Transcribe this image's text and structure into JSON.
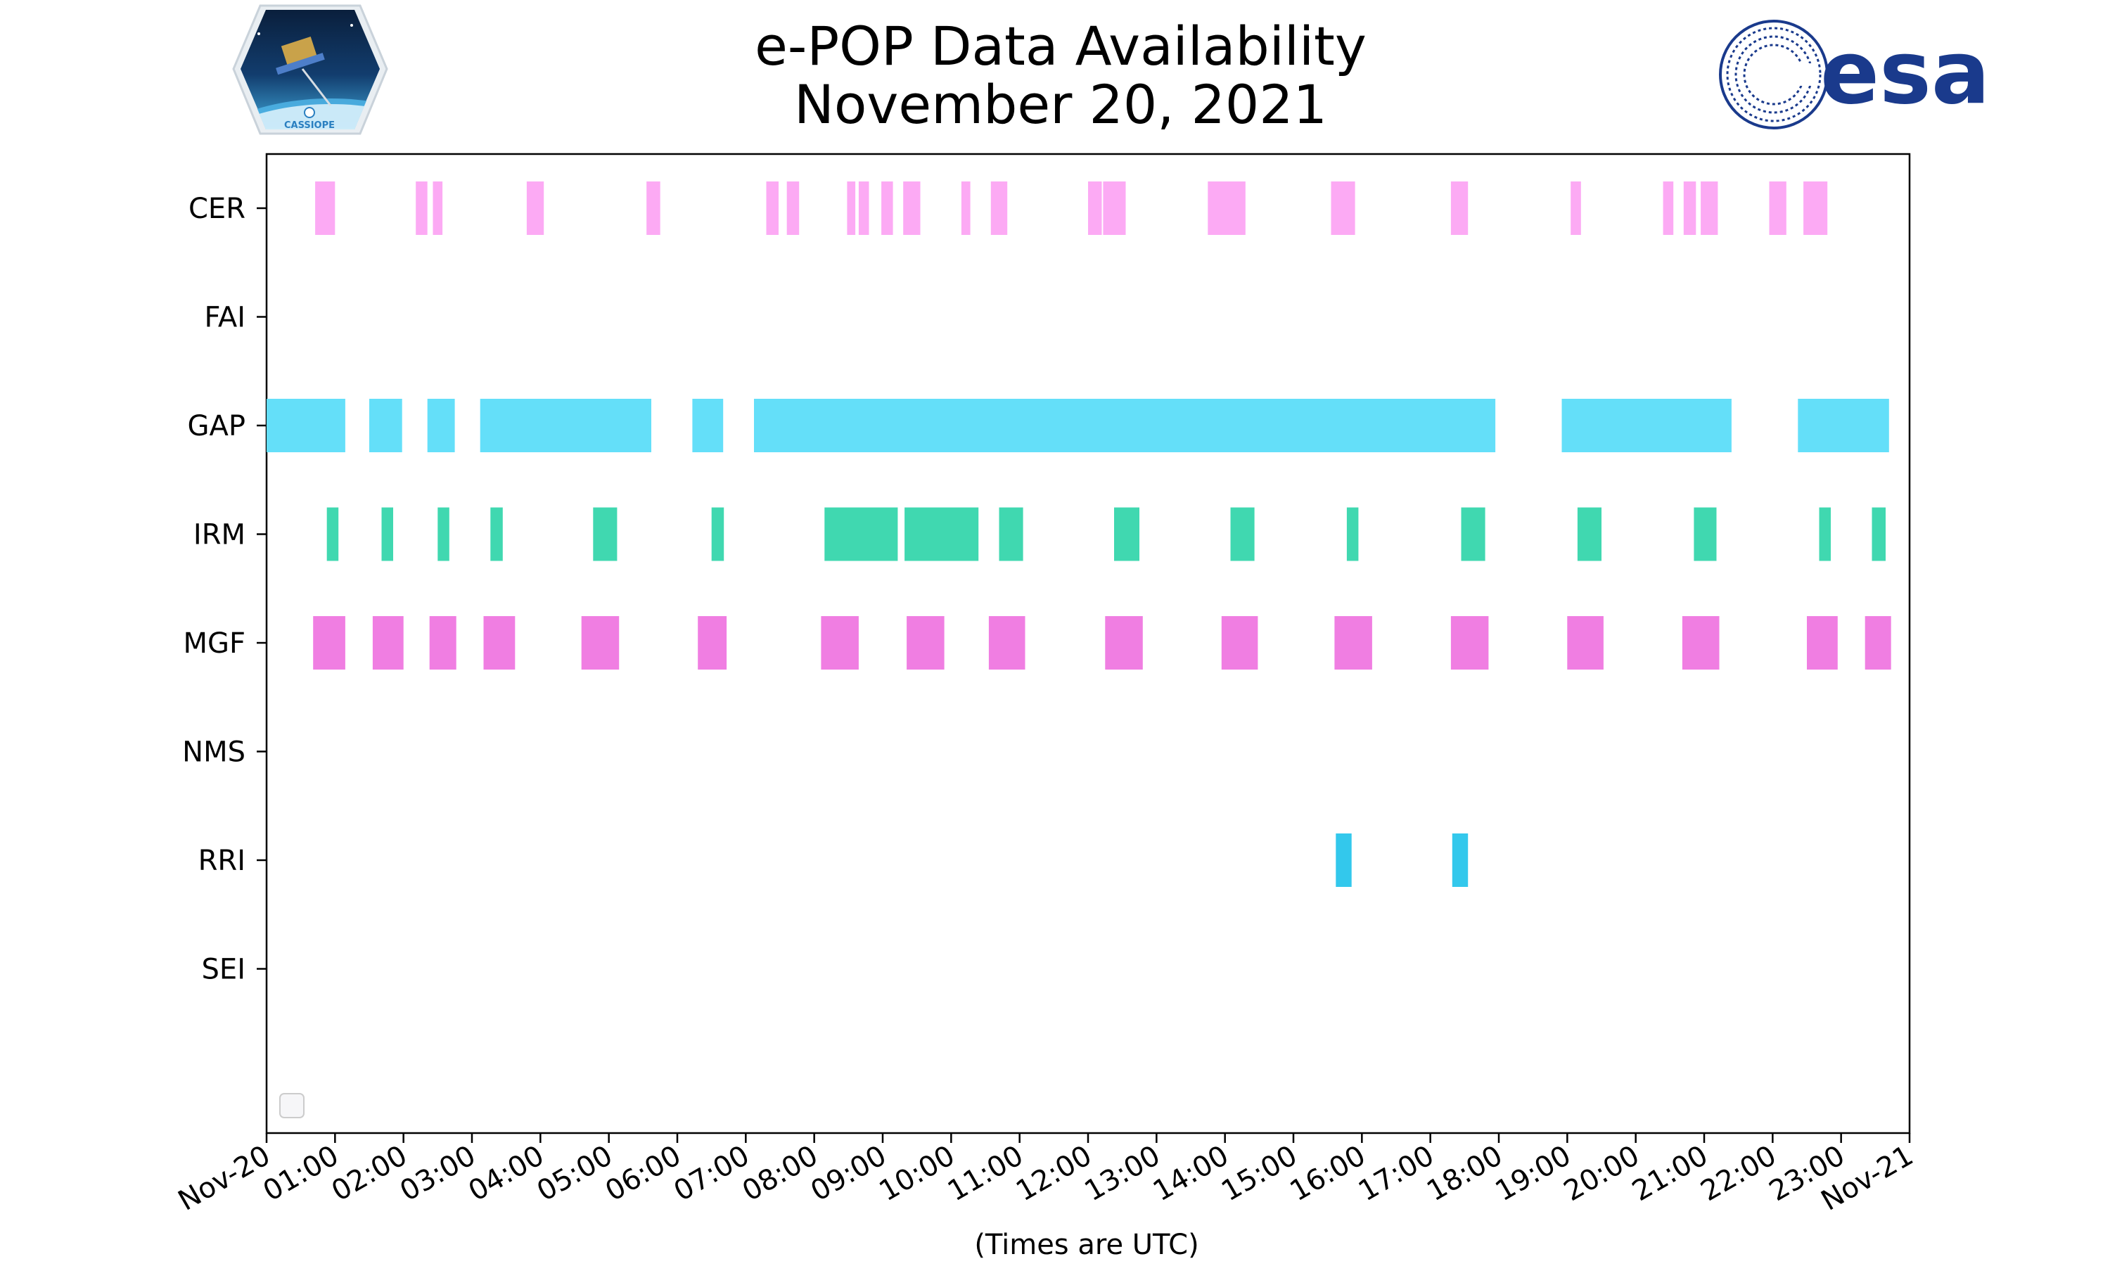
{
  "logos": {
    "left": "CASSIOPE",
    "right": "esa"
  },
  "colors": {
    "CER": "#fcaaf4",
    "GAP": "#64dff9",
    "IRM": "#40d8b0",
    "MGF": "#f07ee2",
    "MGF_dark": "#f06ae0",
    "RRI": "#33c8ec"
  },
  "chart_data": {
    "type": "timeline",
    "title": [
      "e-POP Data Availability",
      "November 20, 2021"
    ],
    "xlabel": "(Times are UTC)",
    "xlim_hours": [
      0,
      24
    ],
    "x_tick_labels": [
      "Nov-20",
      "01:00",
      "02:00",
      "03:00",
      "04:00",
      "05:00",
      "06:00",
      "07:00",
      "08:00",
      "09:00",
      "10:00",
      "11:00",
      "12:00",
      "13:00",
      "14:00",
      "15:00",
      "16:00",
      "17:00",
      "18:00",
      "19:00",
      "20:00",
      "21:00",
      "22:00",
      "23:00",
      "Nov-21"
    ],
    "categories": [
      "CER",
      "FAI",
      "GAP",
      "IRM",
      "MGF",
      "NMS",
      "RRI",
      "SEI"
    ],
    "series": [
      {
        "name": "CER",
        "color": "#fcaaf4",
        "intervals": [
          [
            0.71,
            1.0
          ],
          [
            2.18,
            2.35
          ],
          [
            2.43,
            2.57
          ],
          [
            3.8,
            4.05
          ],
          [
            5.55,
            5.75
          ],
          [
            7.3,
            7.48
          ],
          [
            7.6,
            7.78
          ],
          [
            8.48,
            8.6
          ],
          [
            8.65,
            8.8
          ],
          [
            8.98,
            9.15
          ],
          [
            9.3,
            9.55
          ],
          [
            10.15,
            10.28
          ],
          [
            10.58,
            10.82
          ],
          [
            12.0,
            12.2
          ],
          [
            12.22,
            12.55
          ],
          [
            13.75,
            14.3
          ],
          [
            15.55,
            15.9
          ],
          [
            17.3,
            17.55
          ],
          [
            19.05,
            19.2
          ],
          [
            20.4,
            20.55
          ],
          [
            20.7,
            20.88
          ],
          [
            20.95,
            21.2
          ],
          [
            21.95,
            22.2
          ],
          [
            22.45,
            22.8
          ]
        ]
      },
      {
        "name": "FAI",
        "color": "#fcaaf4",
        "intervals": []
      },
      {
        "name": "GAP",
        "color": "#64dff9",
        "intervals": [
          [
            0.0,
            1.15
          ],
          [
            1.5,
            1.98
          ],
          [
            2.35,
            2.75
          ],
          [
            3.12,
            5.62
          ],
          [
            6.22,
            6.67
          ],
          [
            7.12,
            17.95
          ],
          [
            18.92,
            21.4
          ],
          [
            22.37,
            23.7
          ]
        ]
      },
      {
        "name": "IRM",
        "color": "#40d8b0",
        "intervals": [
          [
            0.88,
            1.05
          ],
          [
            1.68,
            1.85
          ],
          [
            2.5,
            2.67
          ],
          [
            3.27,
            3.45
          ],
          [
            4.77,
            5.12
          ],
          [
            6.5,
            6.68
          ],
          [
            8.15,
            9.22
          ],
          [
            9.32,
            10.4
          ],
          [
            10.7,
            11.05
          ],
          [
            12.38,
            12.75
          ],
          [
            14.08,
            14.43
          ],
          [
            15.78,
            15.95
          ],
          [
            17.45,
            17.8
          ],
          [
            19.15,
            19.5
          ],
          [
            20.85,
            21.18
          ],
          [
            22.68,
            22.85
          ],
          [
            23.45,
            23.65
          ]
        ]
      },
      {
        "name": "MGF",
        "color": "#f07ee2",
        "intervals": [
          [
            0.68,
            1.15
          ],
          [
            1.55,
            2.0
          ],
          [
            2.38,
            2.77
          ],
          [
            3.17,
            3.63
          ],
          [
            4.6,
            5.15
          ],
          [
            6.3,
            6.72
          ],
          [
            8.1,
            8.65
          ],
          [
            9.35,
            9.9
          ],
          [
            10.55,
            11.08
          ],
          [
            12.25,
            12.8
          ],
          [
            13.95,
            14.48
          ],
          [
            15.6,
            16.15
          ],
          [
            17.3,
            17.85
          ],
          [
            19.0,
            19.53
          ],
          [
            20.68,
            21.22
          ],
          [
            22.5,
            22.95
          ],
          [
            23.35,
            23.73
          ]
        ]
      },
      {
        "name": "NMS",
        "color": "#f07ee2",
        "intervals": []
      },
      {
        "name": "RRI",
        "color": "#33c8ec",
        "intervals": [
          [
            15.62,
            15.85
          ],
          [
            17.32,
            17.55
          ]
        ]
      },
      {
        "name": "SEI",
        "color": "#33c8ec",
        "intervals": []
      }
    ],
    "legend": "bottom-left",
    "grid": false
  }
}
